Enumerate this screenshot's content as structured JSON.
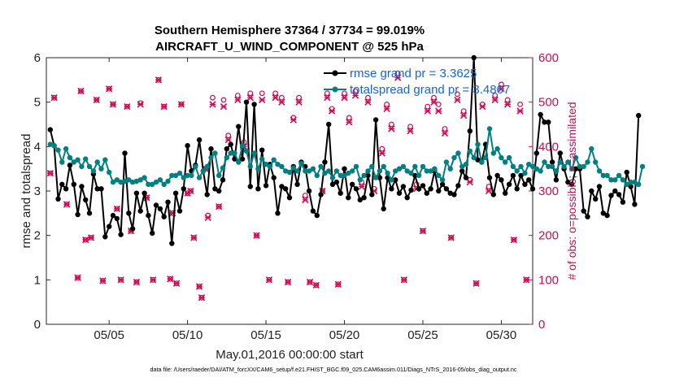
{
  "chart_data": {
    "type": "line",
    "title": "Southern Hemisphere 37364 / 37734 = 99.019%",
    "subtitle": "AIRCRAFT_U_WIND_COMPONENT @ 525 hPa",
    "xlabel": "May.01,2016 00:00:00 start",
    "ylabel": "rmse and totalspread",
    "y2label": "# of obs: o=possible; ×=assimilated",
    "footer": "data file: /Users/raeder/DAI/ATM_forcXX/CAM6_setup/f.e21.FHIST_BGC.f09_025.CAM6assim.011/Diags_NTrS_2016-05/obs_diag_output.nc",
    "xlim": [
      1,
      32
    ],
    "ylim": [
      0,
      6
    ],
    "y2lim": [
      0,
      600
    ],
    "x_ticks": [
      5,
      10,
      15,
      20,
      25,
      30
    ],
    "x_tick_labels": [
      "05/05",
      "05/10",
      "05/15",
      "05/20",
      "05/25",
      "05/30"
    ],
    "y_ticks": [
      "0",
      "1",
      "2",
      "3",
      "4",
      "5",
      "6"
    ],
    "y2_ticks": [
      "0",
      "100",
      "200",
      "300",
      "400",
      "500",
      "600"
    ],
    "colors": {
      "rmse": "#000000",
      "spread": "#008080",
      "obs": "#d10a53",
      "legend_text": "#1565e0"
    },
    "grid": false,
    "legend_position": "top-right",
    "x_start": 1.25,
    "x_step": 0.25,
    "series": [
      {
        "name": "rmse grand pr = 3.3625",
        "axis": "left",
        "values": [
          4.38,
          4.02,
          2.82,
          3.15,
          3.05,
          3.58,
          3.15,
          2.47,
          3.1,
          2.8,
          2.5,
          3.38,
          3.05,
          3.05,
          1.97,
          2.2,
          2.45,
          2.38,
          2.02,
          3.85,
          2.5,
          2.15,
          2.95,
          2.55,
          2.95,
          2.45,
          2.05,
          2.68,
          2.6,
          2.42,
          2.75,
          1.82,
          2.95,
          2.55,
          3.05,
          4.02,
          3.45,
          3.58,
          4.15,
          3.45,
          2.92,
          3.95,
          3.05,
          3.0,
          3.25,
          3.95,
          4.05,
          3.72,
          4.45,
          3.72,
          5.0,
          3.1,
          4.95,
          3.05,
          3.92,
          3.12,
          3.6,
          3.3,
          2.5,
          3.1,
          3.05,
          2.85,
          3.55,
          3.15,
          3.65,
          3.55,
          3.0,
          2.55,
          2.45,
          2.92,
          3.65,
          4.5,
          3.15,
          3.2,
          2.95,
          3.5,
          2.85,
          3.15,
          3.05,
          2.8,
          2.85,
          3.35,
          2.92,
          4.6,
          3.3,
          2.6,
          3.3,
          3.05,
          3.25,
          2.95,
          3.1,
          2.85,
          3.02,
          3.35,
          3.05,
          3.12,
          2.95,
          3.05,
          3.45,
          3.0,
          3.15,
          3.05,
          2.95,
          2.92,
          3.12,
          3.45,
          3.3,
          4.35,
          6.0,
          3.7,
          3.65,
          4.05,
          3.3,
          2.92,
          3.35,
          3.25,
          2.95,
          3.15,
          3.35,
          3.05,
          3.35,
          3.15,
          3.25,
          3.05,
          3.85,
          4.72,
          4.55,
          4.55,
          3.65,
          3.25,
          3.85,
          3.5,
          3.2,
          3.15,
          3.5,
          3.5,
          2.55,
          2.42,
          3.0,
          2.82,
          3.1,
          2.5,
          2.45,
          2.9,
          3.0,
          2.92,
          2.75,
          3.42,
          3.1,
          2.7,
          4.7
        ],
        "color": "#000000"
      },
      {
        "name": "totalspread grand pr = 3.4867",
        "axis": "left",
        "values": [
          4.05,
          4.02,
          3.92,
          3.65,
          3.95,
          3.75,
          3.65,
          3.7,
          3.55,
          3.72,
          3.55,
          3.45,
          3.65,
          3.5,
          3.7,
          3.42,
          3.2,
          3.25,
          3.2,
          3.22,
          3.25,
          3.2,
          3.22,
          3.25,
          3.3,
          3.15,
          3.15,
          3.2,
          3.25,
          3.15,
          3.22,
          3.35,
          3.35,
          3.4,
          3.3,
          3.35,
          3.35,
          3.55,
          3.3,
          3.45,
          3.55,
          3.75,
          3.85,
          3.35,
          3.52,
          3.75,
          3.85,
          3.85,
          3.65,
          4.02,
          3.9,
          3.55,
          3.85,
          3.5,
          3.72,
          3.6,
          3.55,
          3.7,
          3.6,
          3.55,
          3.45,
          3.42,
          3.52,
          3.45,
          3.62,
          3.45,
          3.45,
          3.5,
          3.35,
          3.55,
          3.4,
          3.45,
          3.3,
          3.45,
          3.35,
          3.35,
          3.4,
          3.45,
          3.55,
          3.25,
          3.35,
          3.45,
          3.55,
          3.3,
          3.45,
          3.55,
          3.4,
          3.25,
          3.45,
          3.5,
          3.55,
          3.45,
          3.4,
          3.55,
          3.35,
          3.55,
          3.45,
          3.45,
          3.5,
          3.35,
          3.25,
          3.65,
          3.5,
          3.75,
          3.85,
          3.55,
          3.6,
          3.9,
          3.75,
          4.05,
          3.65,
          3.75,
          4.4,
          3.85,
          3.95,
          3.75,
          3.65,
          3.75,
          3.55,
          3.45,
          3.55,
          3.4,
          3.6,
          3.55,
          3.5,
          3.45,
          3.65,
          3.55,
          3.55,
          3.45,
          3.65,
          3.55,
          3.65,
          3.5,
          3.75,
          3.55,
          3.55,
          3.65,
          3.95,
          3.65,
          3.45,
          3.35,
          3.35,
          3.25,
          3.25,
          3.35,
          3.25,
          3.15,
          3.2,
          3.2,
          3.15,
          3.55
        ],
        "color": "#008080"
      },
      {
        "name": "possible",
        "axis": "right",
        "marker": "o",
        "x": [
          1.25,
          1.5,
          2.3,
          3.0,
          3.2,
          3.5,
          3.85,
          4.2,
          4.6,
          5.0,
          5.25,
          5.5,
          5.75,
          6.15,
          6.4,
          6.75,
          7.0,
          7.4,
          7.8,
          8.15,
          8.5,
          8.9,
          9.05,
          9.3,
          9.6,
          10.0,
          10.2,
          10.4,
          10.75,
          10.9,
          11.15,
          11.3,
          11.6,
          12.0,
          12.3,
          12.6,
          13.2,
          13.6,
          14.0,
          14.4,
          14.75,
          15.2,
          15.6,
          16.0,
          16.4,
          16.75,
          17.1,
          17.5,
          17.8,
          18.2,
          18.6,
          18.9,
          19.2,
          19.6,
          20.0,
          20.3,
          20.7,
          21.1,
          21.5,
          21.9,
          22.4,
          22.7,
          23.0,
          23.4,
          23.8,
          24.2,
          24.6,
          25.0,
          25.3,
          25.7,
          26.0,
          26.4,
          26.8,
          27.2,
          27.6,
          28.0,
          28.4,
          28.8,
          29.2,
          29.6,
          30.0,
          30.4,
          30.8,
          31.2,
          31.6
        ],
        "values": [
          340,
          510,
          270,
          105,
          525,
          190,
          195,
          505,
          98,
          530,
          495,
          260,
          100,
          490,
          210,
          95,
          498,
          285,
          100,
          550,
          490,
          102,
          250,
          92,
          495,
          295,
          300,
          195,
          85,
          60,
          350,
          245,
          510,
          265,
          505,
          425,
          515,
          410,
          520,
          200,
          520,
          100,
          520,
          510,
          95,
          465,
          510,
          290,
          95,
          88,
          300,
          520,
          485,
          90,
          520,
          465,
          525,
          320,
          510,
          305,
          395,
          495,
          450,
          565,
          100,
          445,
          315,
          210,
          490,
          510,
          495,
          440,
          195,
          518,
          480,
          325,
          92,
          495,
          310,
          515,
          540,
          505,
          190,
          495,
          100
        ],
        "color": "#d10a53"
      },
      {
        "name": "assimilated",
        "axis": "right",
        "marker": "x",
        "x": [
          1.25,
          1.5,
          2.3,
          3.0,
          3.2,
          3.5,
          3.85,
          4.2,
          4.6,
          5.0,
          5.25,
          5.5,
          5.75,
          6.15,
          6.4,
          6.75,
          7.0,
          7.4,
          7.8,
          8.15,
          8.5,
          8.9,
          9.05,
          9.3,
          9.6,
          10.0,
          10.2,
          10.4,
          10.75,
          10.9,
          11.15,
          11.3,
          11.6,
          12.0,
          12.3,
          12.6,
          13.2,
          13.6,
          14.0,
          14.4,
          14.75,
          15.2,
          15.6,
          16.0,
          16.4,
          16.75,
          17.1,
          17.5,
          17.8,
          18.2,
          18.6,
          18.9,
          19.2,
          19.6,
          20.0,
          20.3,
          20.7,
          21.1,
          21.5,
          21.9,
          22.4,
          22.7,
          23.0,
          23.4,
          23.8,
          24.2,
          24.6,
          25.0,
          25.3,
          25.7,
          26.0,
          26.4,
          26.8,
          27.2,
          27.6,
          28.0,
          28.4,
          28.8,
          29.2,
          29.6,
          30.0,
          30.4,
          30.8,
          31.2,
          31.6
        ],
        "values": [
          340,
          510,
          270,
          105,
          525,
          190,
          195,
          505,
          98,
          530,
          495,
          260,
          100,
          490,
          210,
          95,
          495,
          285,
          100,
          550,
          490,
          102,
          250,
          92,
          495,
          295,
          300,
          195,
          85,
          60,
          350,
          240,
          495,
          265,
          490,
          415,
          505,
          400,
          510,
          200,
          505,
          100,
          510,
          500,
          95,
          460,
          500,
          280,
          95,
          88,
          300,
          510,
          480,
          90,
          510,
          455,
          515,
          310,
          500,
          300,
          385,
          485,
          440,
          555,
          100,
          435,
          305,
          210,
          480,
          500,
          480,
          430,
          195,
          505,
          470,
          320,
          92,
          490,
          300,
          505,
          530,
          495,
          190,
          480,
          100
        ],
        "color": "#d10a53"
      }
    ]
  }
}
